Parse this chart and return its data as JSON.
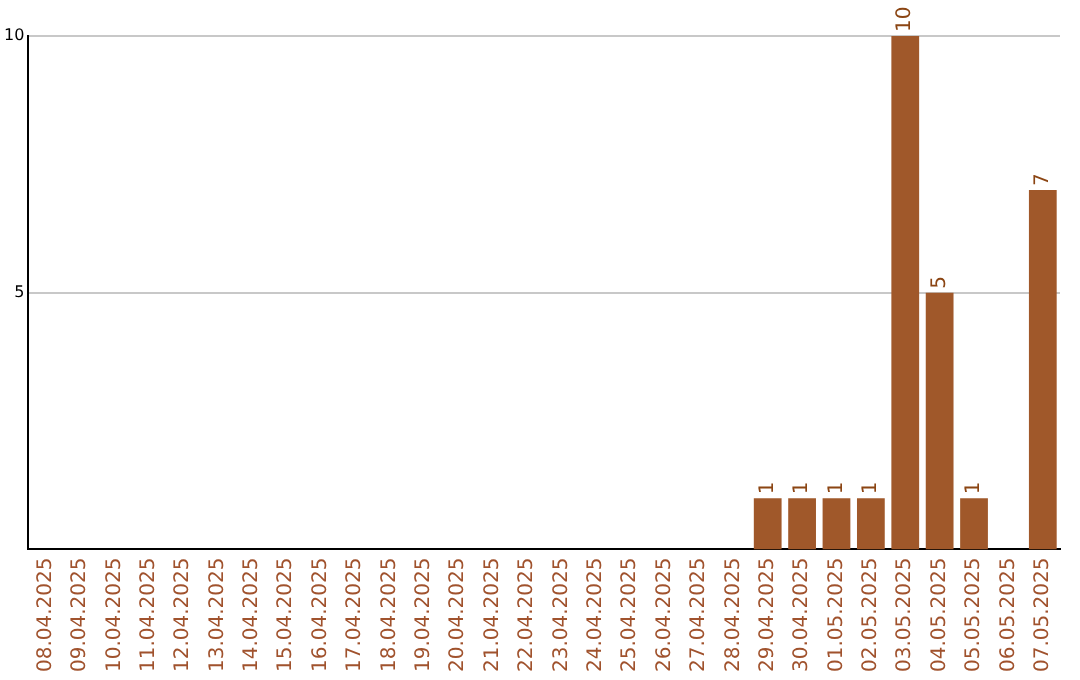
{
  "chart_data": {
    "type": "bar",
    "categories": [
      "08.04.2025",
      "09.04.2025",
      "10.04.2025",
      "11.04.2025",
      "12.04.2025",
      "13.04.2025",
      "14.04.2025",
      "15.04.2025",
      "16.04.2025",
      "17.04.2025",
      "18.04.2025",
      "19.04.2025",
      "20.04.2025",
      "21.04.2025",
      "22.04.2025",
      "23.04.2025",
      "24.04.2025",
      "25.04.2025",
      "26.04.2025",
      "27.04.2025",
      "28.04.2025",
      "29.04.2025",
      "30.04.2025",
      "01.05.2025",
      "02.05.2025",
      "03.05.2025",
      "04.05.2025",
      "05.05.2025",
      "06.05.2025",
      "07.05.2025"
    ],
    "values": [
      0,
      0,
      0,
      0,
      0,
      0,
      0,
      0,
      0,
      0,
      0,
      0,
      0,
      0,
      0,
      0,
      0,
      0,
      0,
      0,
      0,
      1,
      1,
      1,
      1,
      10,
      5,
      1,
      0,
      7
    ],
    "value_labels": [
      null,
      null,
      null,
      null,
      null,
      null,
      null,
      null,
      null,
      null,
      null,
      null,
      null,
      null,
      null,
      null,
      null,
      null,
      null,
      null,
      null,
      "1",
      "1",
      "1",
      "1",
      "10",
      "5",
      "1",
      null,
      "7"
    ],
    "color": "#a0582a",
    "ylim": [
      0,
      10
    ],
    "yticks": [
      5,
      10
    ],
    "grid": "y"
  }
}
